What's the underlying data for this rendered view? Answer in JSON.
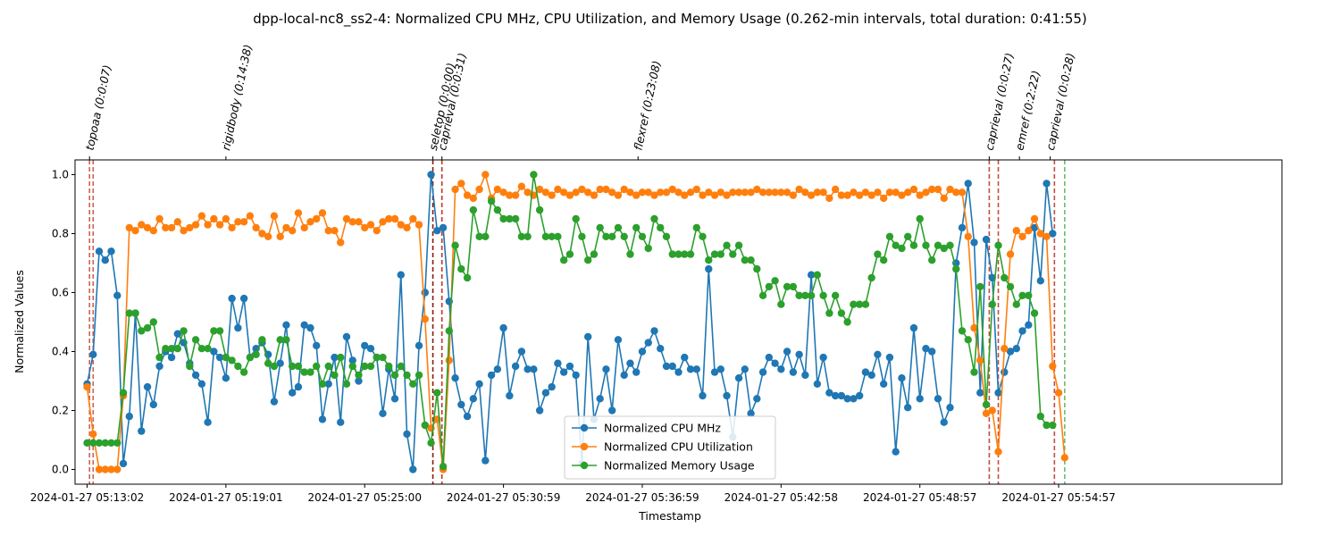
{
  "chart_data": {
    "type": "line",
    "title": "dpp-local-nc8_ss2-4: Normalized CPU MHz, CPU Utilization, and Memory Usage (0.262-min intervals, total duration: 0:41:55)",
    "xlabel": "Timestamp",
    "ylabel": "Normalized Values",
    "ylim": [
      -0.05,
      1.05
    ],
    "xlim_index": [
      -2,
      198
    ],
    "y_ticks": [
      "0.0",
      "0.2",
      "0.4",
      "0.6",
      "0.8",
      "1.0"
    ],
    "x_ticks": [
      {
        "index": 0,
        "label": "2024-01-27 05:13:02"
      },
      {
        "index": 23,
        "label": "2024-01-27 05:19:01"
      },
      {
        "index": 46,
        "label": "2024-01-27 05:25:00"
      },
      {
        "index": 69,
        "label": "2024-01-27 05:30:59"
      },
      {
        "index": 92,
        "label": "2024-01-27 05:36:59"
      },
      {
        "index": 115,
        "label": "2024-01-27 05:42:58"
      },
      {
        "index": 138,
        "label": "2024-01-27 05:48:57"
      },
      {
        "index": 161,
        "label": "2024-01-27 05:54:57"
      }
    ],
    "legend_position": "bottom-center",
    "series": [
      {
        "name": "Normalized CPU MHz",
        "color": "#1f77b4",
        "values": [
          0.29,
          0.39,
          0.74,
          0.71,
          0.74,
          0.59,
          0.02,
          0.18,
          0.53,
          0.13,
          0.28,
          0.22,
          0.35,
          0.4,
          0.38,
          0.46,
          0.43,
          0.36,
          0.32,
          0.29,
          0.16,
          0.4,
          0.38,
          0.31,
          0.58,
          0.48,
          0.58,
          0.38,
          0.41,
          0.43,
          0.39,
          0.23,
          0.36,
          0.49,
          0.26,
          0.28,
          0.49,
          0.48,
          0.42,
          0.17,
          0.29,
          0.38,
          0.16,
          0.45,
          0.37,
          0.3,
          0.42,
          0.41,
          0.38,
          0.19,
          0.34,
          0.24,
          0.66,
          0.12,
          0.0,
          0.42,
          0.6,
          1.0,
          0.81,
          0.82,
          0.57,
          0.31,
          0.22,
          0.18,
          0.24,
          0.29,
          0.03,
          0.32,
          0.34,
          0.48,
          0.25,
          0.35,
          0.4,
          0.34,
          0.34,
          0.2,
          0.26,
          0.28,
          0.36,
          0.33,
          0.35,
          0.32,
          0.02,
          0.45,
          0.17,
          0.24,
          0.34,
          0.2,
          0.44,
          0.32,
          0.36,
          0.33,
          0.4,
          0.43,
          0.47,
          0.41,
          0.35,
          0.35,
          0.33,
          0.38,
          0.34,
          0.34,
          0.25,
          0.68,
          0.33,
          0.34,
          0.25,
          0.11,
          0.31,
          0.34,
          0.19,
          0.24,
          0.33,
          0.38,
          0.36,
          0.34,
          0.4,
          0.33,
          0.39,
          0.32,
          0.66,
          0.29,
          0.38,
          0.26,
          0.25,
          0.25,
          0.24,
          0.24,
          0.25,
          0.33,
          0.32,
          0.39,
          0.29,
          0.38,
          0.06,
          0.31,
          0.21,
          0.48,
          0.24,
          0.41,
          0.4,
          0.24,
          0.16,
          0.21,
          0.7,
          0.82,
          0.97,
          0.77,
          0.26,
          0.78,
          0.65,
          0.26,
          0.33,
          0.4,
          0.41,
          0.47,
          0.49,
          0.82,
          0.64,
          0.97,
          0.8
        ]
      },
      {
        "name": "Normalized CPU Utilization",
        "color": "#ff7f0e",
        "values": [
          0.28,
          0.12,
          0.0,
          0.0,
          0.0,
          0.0,
          0.25,
          0.82,
          0.81,
          0.83,
          0.82,
          0.81,
          0.85,
          0.82,
          0.82,
          0.84,
          0.81,
          0.82,
          0.83,
          0.86,
          0.83,
          0.85,
          0.83,
          0.85,
          0.82,
          0.84,
          0.84,
          0.86,
          0.82,
          0.8,
          0.79,
          0.86,
          0.79,
          0.82,
          0.81,
          0.87,
          0.82,
          0.84,
          0.85,
          0.87,
          0.81,
          0.81,
          0.77,
          0.85,
          0.84,
          0.84,
          0.82,
          0.83,
          0.81,
          0.84,
          0.85,
          0.85,
          0.83,
          0.82,
          0.85,
          0.83,
          0.51,
          0.14,
          0.17,
          0.0,
          0.37,
          0.95,
          0.97,
          0.93,
          0.92,
          0.95,
          1.0,
          0.92,
          0.95,
          0.94,
          0.93,
          0.93,
          0.96,
          0.94,
          0.93,
          0.95,
          0.94,
          0.93,
          0.95,
          0.94,
          0.93,
          0.94,
          0.95,
          0.94,
          0.93,
          0.95,
          0.95,
          0.94,
          0.93,
          0.95,
          0.94,
          0.93,
          0.94,
          0.94,
          0.93,
          0.94,
          0.94,
          0.95,
          0.94,
          0.93,
          0.94,
          0.95,
          0.93,
          0.94,
          0.93,
          0.94,
          0.93,
          0.94,
          0.94,
          0.94,
          0.94,
          0.95,
          0.94,
          0.94,
          0.94,
          0.94,
          0.94,
          0.93,
          0.95,
          0.94,
          0.93,
          0.94,
          0.94,
          0.92,
          0.95,
          0.93,
          0.93,
          0.94,
          0.93,
          0.94,
          0.93,
          0.94,
          0.92,
          0.94,
          0.94,
          0.93,
          0.94,
          0.95,
          0.93,
          0.94,
          0.95,
          0.95,
          0.92,
          0.95,
          0.94,
          0.94,
          0.79,
          0.48,
          0.37,
          0.19,
          0.2,
          0.06,
          0.41,
          0.73,
          0.81,
          0.79,
          0.81,
          0.85,
          0.8,
          0.79,
          0.35,
          0.26,
          0.04
        ]
      },
      {
        "name": "Normalized Memory Usage",
        "color": "#2ca02c",
        "values": [
          0.09,
          0.09,
          0.09,
          0.09,
          0.09,
          0.09,
          0.26,
          0.53,
          0.53,
          0.47,
          0.48,
          0.5,
          0.38,
          0.41,
          0.41,
          0.41,
          0.47,
          0.35,
          0.44,
          0.41,
          0.41,
          0.47,
          0.47,
          0.38,
          0.37,
          0.35,
          0.33,
          0.38,
          0.39,
          0.44,
          0.36,
          0.35,
          0.44,
          0.44,
          0.35,
          0.35,
          0.33,
          0.33,
          0.35,
          0.29,
          0.35,
          0.32,
          0.38,
          0.29,
          0.35,
          0.32,
          0.35,
          0.35,
          0.38,
          0.38,
          0.35,
          0.32,
          0.35,
          0.32,
          0.29,
          0.32,
          0.15,
          0.09,
          0.26,
          0.01,
          0.47,
          0.76,
          0.68,
          0.65,
          0.88,
          0.79,
          0.79,
          0.91,
          0.88,
          0.85,
          0.85,
          0.85,
          0.79,
          0.79,
          1.0,
          0.88,
          0.79,
          0.79,
          0.79,
          0.71,
          0.73,
          0.85,
          0.79,
          0.71,
          0.73,
          0.82,
          0.79,
          0.79,
          0.82,
          0.79,
          0.73,
          0.82,
          0.79,
          0.75,
          0.85,
          0.82,
          0.79,
          0.73,
          0.73,
          0.73,
          0.73,
          0.82,
          0.79,
          0.71,
          0.73,
          0.73,
          0.76,
          0.73,
          0.76,
          0.71,
          0.71,
          0.68,
          0.59,
          0.62,
          0.64,
          0.56,
          0.62,
          0.62,
          0.59,
          0.59,
          0.59,
          0.66,
          0.59,
          0.53,
          0.59,
          0.53,
          0.5,
          0.56,
          0.56,
          0.56,
          0.65,
          0.73,
          0.71,
          0.79,
          0.76,
          0.75,
          0.79,
          0.76,
          0.85,
          0.76,
          0.71,
          0.76,
          0.75,
          0.76,
          0.68,
          0.47,
          0.44,
          0.33,
          0.62,
          0.22,
          0.56,
          0.76,
          0.65,
          0.62,
          0.56,
          0.59,
          0.59,
          0.53,
          0.18,
          0.15,
          0.15
        ]
      }
    ],
    "annotations": [
      {
        "label": "topoaa (0:0:07)",
        "index": 0.4,
        "line_color": "#c0392b",
        "line_alpha": 0.8
      },
      {
        "label": "rigidbody (0:14:38)",
        "index": 1.0,
        "line_color": "#c0392b",
        "line_alpha": 0.8
      },
      {
        "label": "seletop (0:0:00)",
        "index": 57.3,
        "line_color": "#8b1a0e",
        "line_alpha": 1.0
      },
      {
        "label": "caprieval (0:0:31)",
        "index": 58.8,
        "line_color": "#c0392b",
        "line_alpha": 0.9
      },
      {
        "label": "flexref (0:23:08)",
        "index": 58.8,
        "line_color": "#c0392b",
        "line_alpha": 0.9
      },
      {
        "label": "caprieval (0:0:27)",
        "index": 149.5,
        "line_color": "#c0392b",
        "line_alpha": 0.9
      },
      {
        "label": "emref (0:2:22)",
        "index": 151.0,
        "line_color": "#c0392b",
        "line_alpha": 0.9
      },
      {
        "label": "caprieval (0:0:28)",
        "index": 160.3,
        "line_color": "#c0392b",
        "line_alpha": 0.9
      },
      {
        "label": "",
        "index": 162.0,
        "line_color": "#2ca02c",
        "line_alpha": 0.7
      }
    ],
    "annotation_label_positions": [
      0.4,
      23.0,
      57.3,
      58.8,
      91.3,
      149.5,
      154.5,
      159.6
    ]
  }
}
